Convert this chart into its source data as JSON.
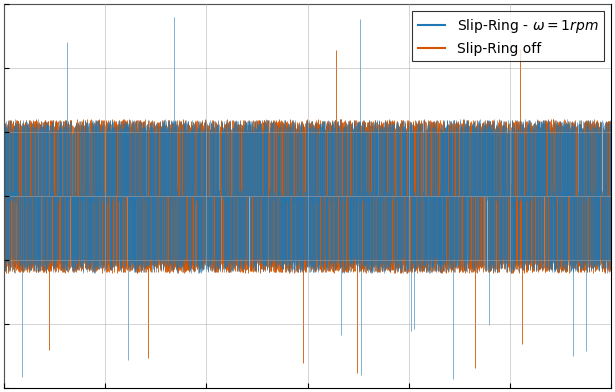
{
  "legend_label_blue": "Slip-Ring - $\\omega = 1rpm$",
  "legend_label_orange": "Slip-Ring off",
  "color_blue": "#1f77b4",
  "color_orange": "#d35400",
  "ylim": [
    -1.5,
    1.5
  ],
  "n_points": 5000,
  "seed_blue": 7,
  "seed_orange": 13,
  "linewidth_blue": 0.4,
  "linewidth_orange": 0.6,
  "grid": true,
  "figsize": [
    6.15,
    3.92
  ],
  "dpi": 100,
  "legend_fontsize": 10
}
